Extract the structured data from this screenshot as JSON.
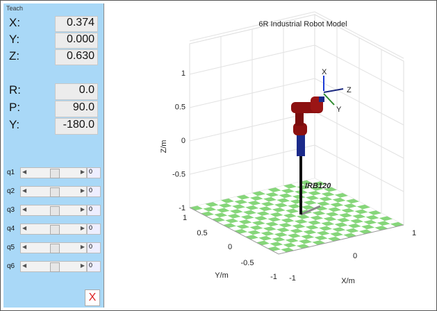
{
  "panel": {
    "title": "Teach",
    "position": [
      {
        "label": "X:",
        "value": "0.374"
      },
      {
        "label": "Y:",
        "value": "0.000"
      },
      {
        "label": "Z:",
        "value": "0.630"
      }
    ],
    "orientation": [
      {
        "label": "R:",
        "value": "0.0"
      },
      {
        "label": "P:",
        "value": "90.0"
      },
      {
        "label": "Y:",
        "value": "-180.0"
      }
    ],
    "joints": [
      {
        "label": "q1",
        "value": "0"
      },
      {
        "label": "q2",
        "value": "0"
      },
      {
        "label": "q3",
        "value": "0"
      },
      {
        "label": "q4",
        "value": "0"
      },
      {
        "label": "q5",
        "value": "0"
      },
      {
        "label": "q6",
        "value": "0"
      }
    ],
    "close": "X"
  },
  "plot": {
    "title": "6R Industrial Robot Model",
    "zlabel": "Z/m",
    "ylabel": "Y/m",
    "xlabel": "X/m",
    "zticks": [
      "1",
      "0.5",
      "0",
      "-0.5",
      "-1"
    ],
    "yticks": [
      "1",
      "0.5",
      "0",
      "-0.5",
      "-1"
    ],
    "xticks": [
      "-1",
      "0",
      "1"
    ],
    "robot_label": "IRB120",
    "frame_labels": [
      "X",
      "Z",
      "Y"
    ]
  }
}
